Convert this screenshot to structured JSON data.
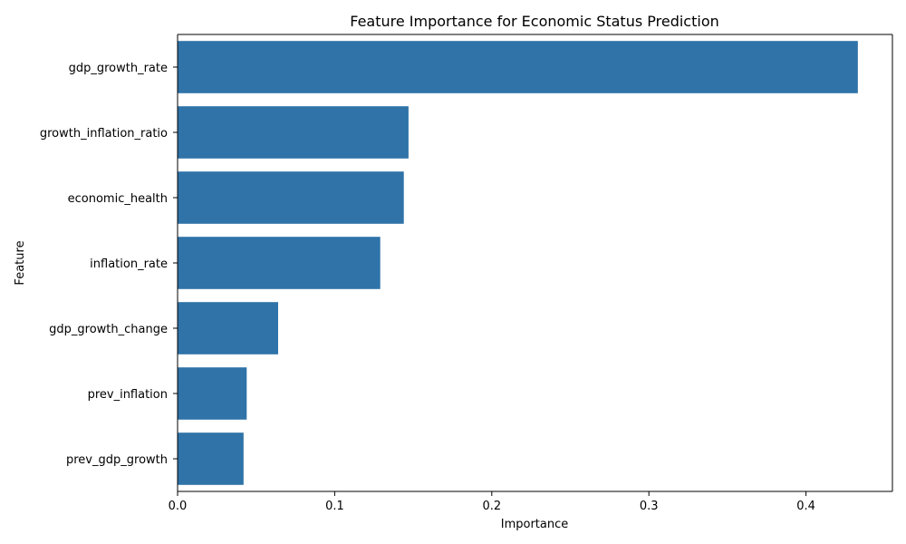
{
  "chart_data": {
    "type": "bar",
    "orientation": "horizontal",
    "title": "Feature Importance for Economic Status Prediction",
    "xlabel": "Importance",
    "ylabel": "Feature",
    "categories": [
      "gdp_growth_rate",
      "growth_inflation_ratio",
      "economic_health",
      "inflation_rate",
      "gdp_growth_change",
      "prev_inflation",
      "prev_gdp_growth"
    ],
    "values": [
      0.433,
      0.147,
      0.144,
      0.129,
      0.064,
      0.044,
      0.042
    ],
    "xlim": [
      0,
      0.455
    ],
    "xticks": [
      0,
      0.1,
      0.2,
      0.3,
      0.4
    ],
    "xtick_labels": [
      "0.0",
      "0.1",
      "0.2",
      "0.3",
      "0.4"
    ],
    "grid": false,
    "bar_color": "#2f73a8"
  }
}
